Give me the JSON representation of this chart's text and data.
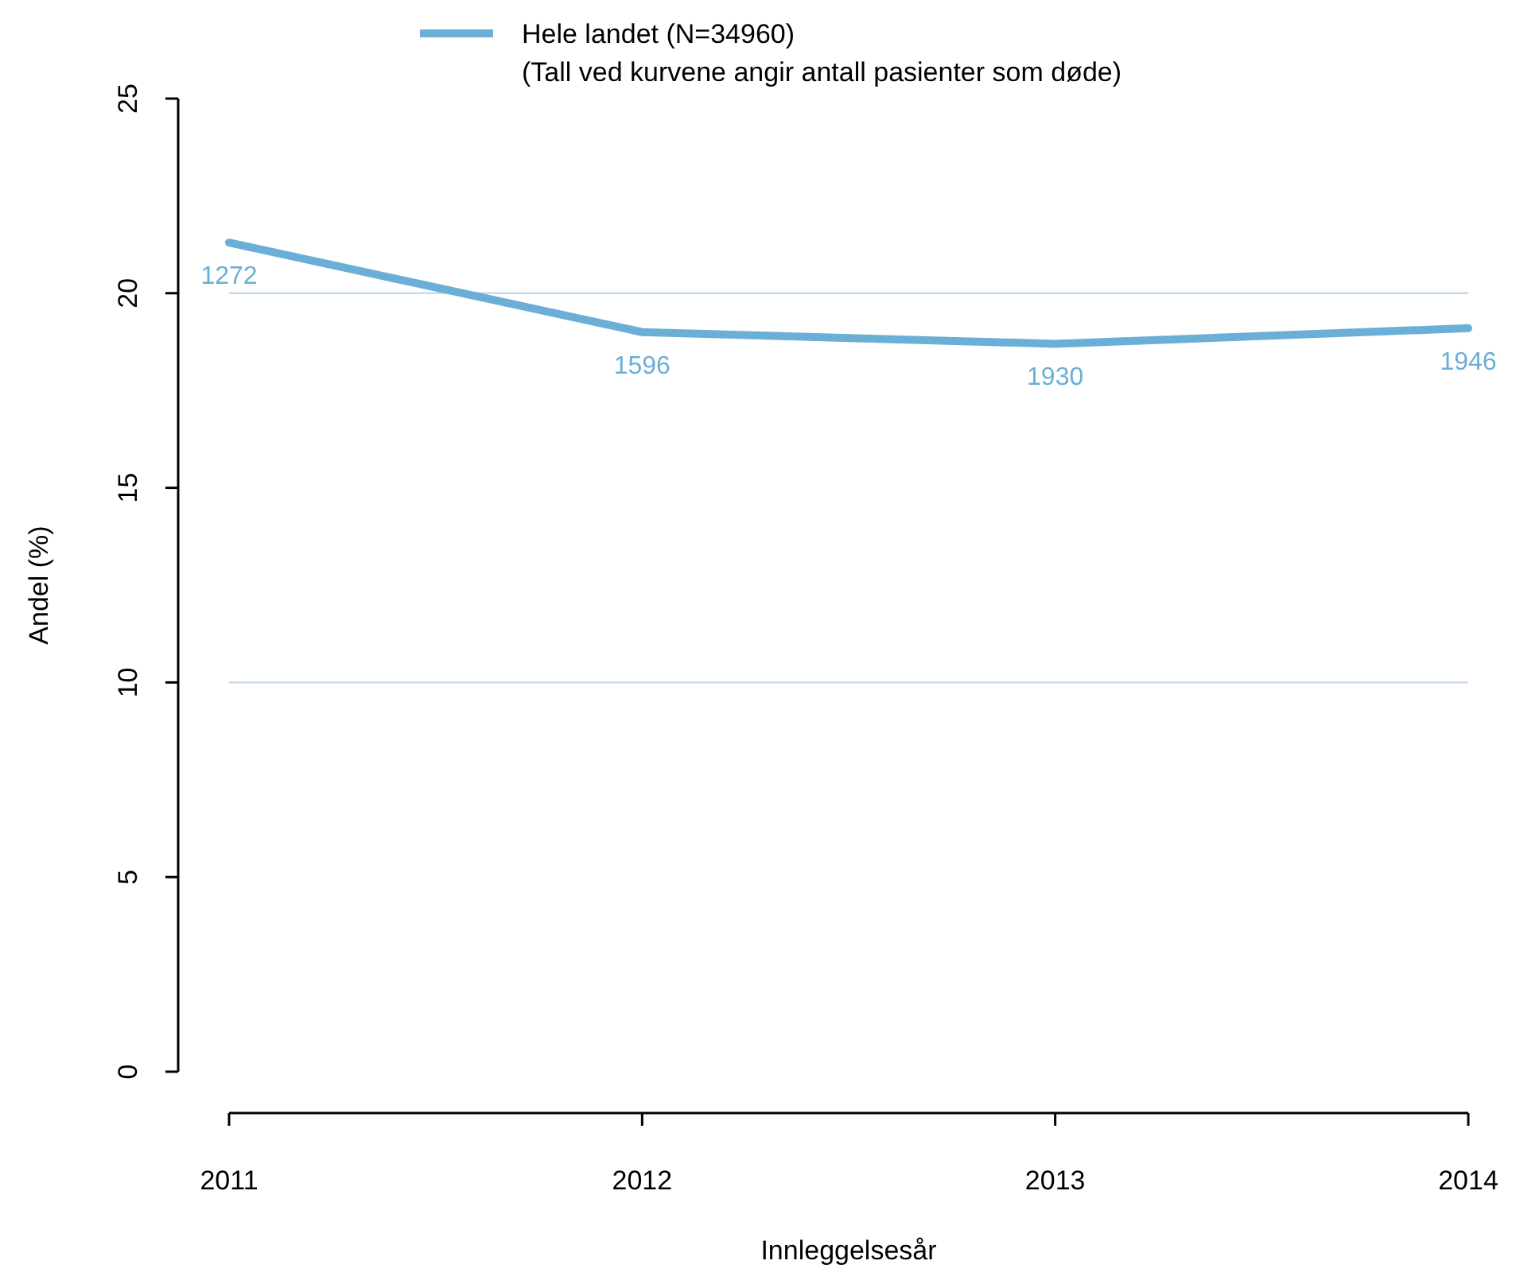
{
  "chart_data": {
    "type": "line",
    "xlabel": "Innleggelsesår",
    "ylabel": "Andel (%)",
    "x": [
      2011,
      2012,
      2013,
      2014
    ],
    "series": [
      {
        "name": "Hele landet (N=34960)",
        "color": "#6baed6",
        "values": [
          21.3,
          19.0,
          18.7,
          19.1
        ]
      }
    ],
    "xlim": [
      2011,
      2014
    ],
    "xticks": [
      2011,
      2012,
      2013,
      2014
    ],
    "ylim": [
      0,
      25
    ],
    "yticks": [
      0,
      5,
      10,
      15,
      20,
      25
    ],
    "ref_lines": [
      {
        "axis": "y",
        "value": 10,
        "color": "#c6dbef"
      },
      {
        "axis": "y",
        "value": 20,
        "color": "#c6dbef"
      }
    ],
    "annotations": [
      "(Tall ved kurvene angir antall pasienter som døde)",
      {
        "text": "1272",
        "x": 2011,
        "y": 21.3
      },
      {
        "text": "1596",
        "x": 2012,
        "y": 19.0
      },
      {
        "text": "1930",
        "x": 2013,
        "y": 18.7
      },
      {
        "text": "1946",
        "x": 2014,
        "y": 19.1
      }
    ],
    "legend": "top",
    "marker": "none",
    "line_style": "solid",
    "grid": false
  }
}
